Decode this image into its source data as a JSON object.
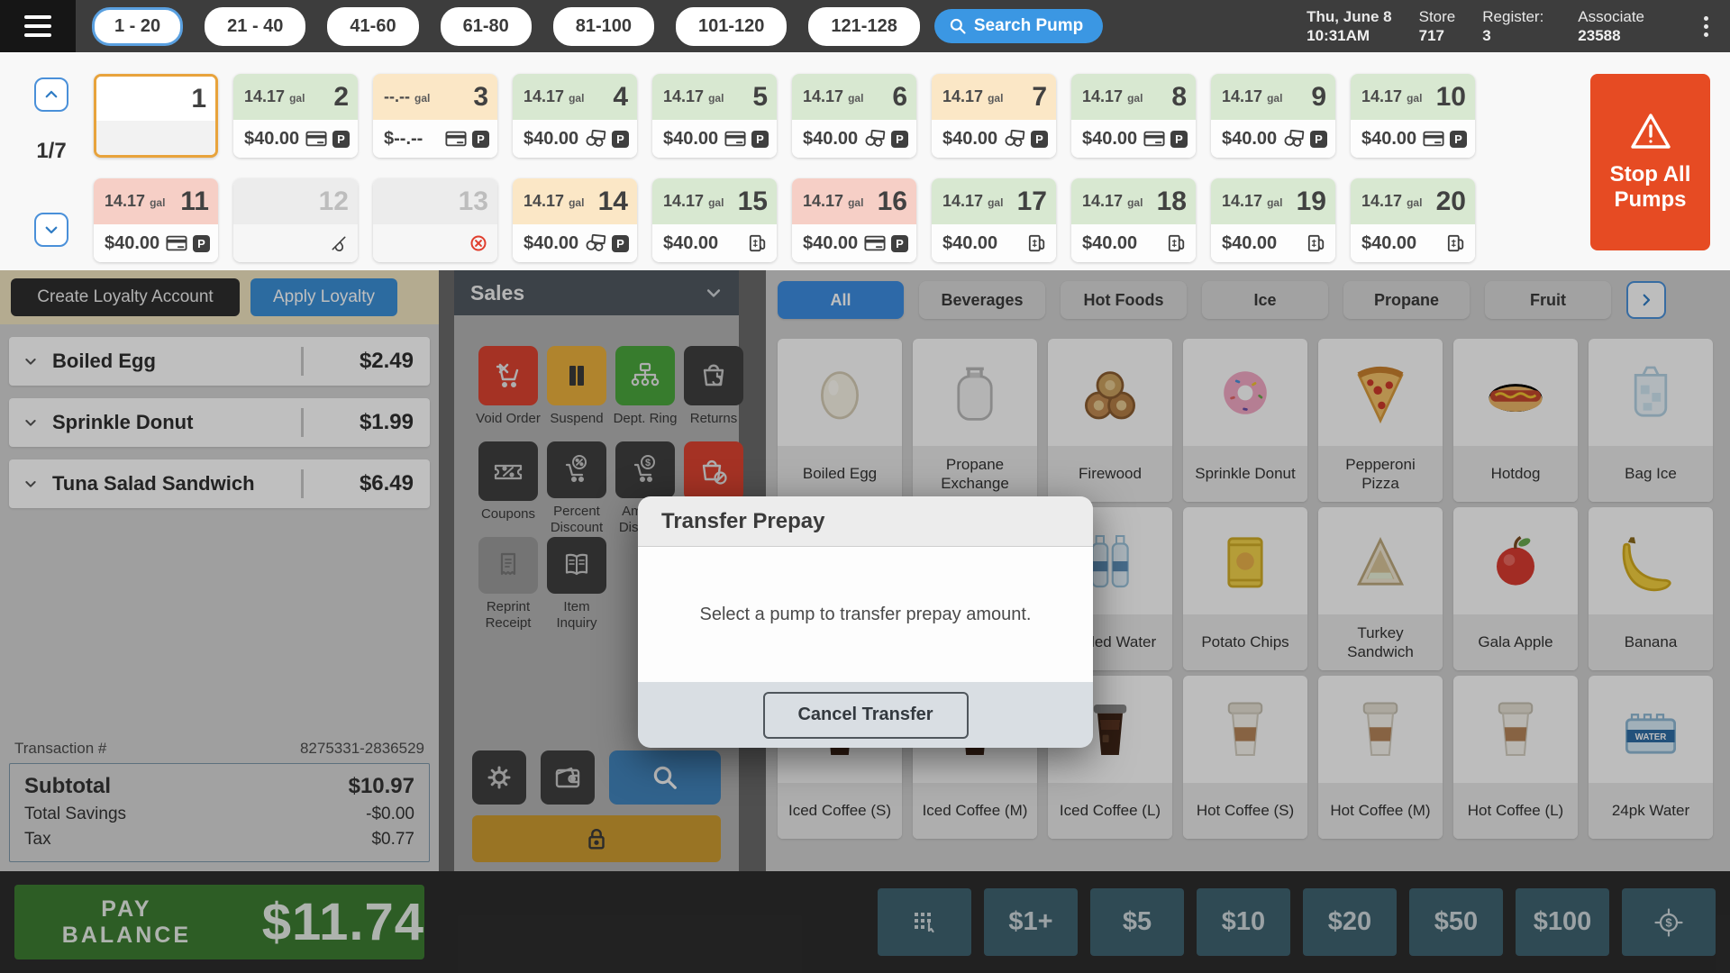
{
  "colors": {
    "accent_blue": "#3b97e3",
    "stop_red": "#e64b23",
    "pay_green": "#3c7d32",
    "selected_pump_border": "#e8a33c",
    "pump_green": "#d8e8d1",
    "pump_tan": "#fbe7c6",
    "pump_pink": "#f6cfc6",
    "suspend_gold": "#ebb03d",
    "void_red": "#dc4331"
  },
  "header": {
    "tabs": [
      {
        "label": "1 - 20",
        "selected": true
      },
      {
        "label": "21 - 40",
        "selected": false
      },
      {
        "label": "41-60",
        "selected": false
      },
      {
        "label": "61-80",
        "selected": false
      },
      {
        "label": "81-100",
        "selected": false
      },
      {
        "label": "101-120",
        "selected": false
      },
      {
        "label": "121-128",
        "selected": false
      }
    ],
    "search_pump_label": "Search Pump",
    "date": "Thu, June 8",
    "time": "10:31AM",
    "store_label": "Store",
    "store_value": "717",
    "register_label": "Register:",
    "register_value": "3",
    "associate_label": "Associate",
    "associate_value": "23588"
  },
  "pumps": {
    "page": "1/7",
    "stop_all_label": "Stop All Pumps",
    "tiles": [
      {
        "number": "1",
        "state": "selected",
        "gal": "",
        "unit": "",
        "price": "",
        "icons": []
      },
      {
        "number": "2",
        "state": "green",
        "gal": "14.17",
        "unit": "gal",
        "price": "$40.00",
        "icons": [
          "card-icon",
          "prepay-badge"
        ]
      },
      {
        "number": "3",
        "state": "tan",
        "gal": "--.--",
        "unit": "gal",
        "price": "$--.--",
        "icons": [
          "card-icon",
          "prepay-badge"
        ]
      },
      {
        "number": "4",
        "state": "green",
        "gal": "14.17",
        "unit": "gal",
        "price": "$40.00",
        "icons": [
          "coins-icon",
          "prepay-badge"
        ]
      },
      {
        "number": "5",
        "state": "green",
        "gal": "14.17",
        "unit": "gal",
        "price": "$40.00",
        "icons": [
          "card-icon",
          "prepay-badge"
        ]
      },
      {
        "number": "6",
        "state": "green",
        "gal": "14.17",
        "unit": "gal",
        "price": "$40.00",
        "icons": [
          "coins-icon",
          "prepay-badge"
        ]
      },
      {
        "number": "7",
        "state": "tan",
        "gal": "14.17",
        "unit": "gal",
        "price": "$40.00",
        "icons": [
          "coins-icon",
          "prepay-badge"
        ]
      },
      {
        "number": "8",
        "state": "green",
        "gal": "14.17",
        "unit": "gal",
        "price": "$40.00",
        "icons": [
          "card-icon",
          "prepay-badge"
        ]
      },
      {
        "number": "9",
        "state": "green",
        "gal": "14.17",
        "unit": "gal",
        "price": "$40.00",
        "icons": [
          "coins-icon",
          "prepay-badge"
        ]
      },
      {
        "number": "10",
        "state": "green",
        "gal": "14.17",
        "unit": "gal",
        "price": "$40.00",
        "icons": [
          "card-icon",
          "prepay-badge"
        ]
      },
      {
        "number": "11",
        "state": "pink",
        "gal": "14.17",
        "unit": "gal",
        "price": "$40.00",
        "icons": [
          "card-icon",
          "prepay-badge"
        ]
      },
      {
        "number": "12",
        "state": "offline",
        "gal": "",
        "unit": "",
        "price": "",
        "icons": [
          "nofuel-icon"
        ]
      },
      {
        "number": "13",
        "state": "offline",
        "gal": "",
        "unit": "",
        "price": "",
        "icons": [
          "error-icon"
        ]
      },
      {
        "number": "14",
        "state": "tan",
        "gal": "14.17",
        "unit": "gal",
        "price": "$40.00",
        "icons": [
          "coins-icon",
          "prepay-badge"
        ]
      },
      {
        "number": "15",
        "state": "green",
        "gal": "14.17",
        "unit": "gal",
        "price": "$40.00",
        "icons": [
          "fuel-icon"
        ]
      },
      {
        "number": "16",
        "state": "pink",
        "gal": "14.17",
        "unit": "gal",
        "price": "$40.00",
        "icons": [
          "card-icon",
          "prepay-badge"
        ]
      },
      {
        "number": "17",
        "state": "green",
        "gal": "14.17",
        "unit": "gal",
        "price": "$40.00",
        "icons": [
          "fuel-icon"
        ]
      },
      {
        "number": "18",
        "state": "green",
        "gal": "14.17",
        "unit": "gal",
        "price": "$40.00",
        "icons": [
          "fuel-icon"
        ]
      },
      {
        "number": "19",
        "state": "green",
        "gal": "14.17",
        "unit": "gal",
        "price": "$40.00",
        "icons": [
          "fuel-icon"
        ]
      },
      {
        "number": "20",
        "state": "green",
        "gal": "14.17",
        "unit": "gal",
        "price": "$40.00",
        "icons": [
          "fuel-icon"
        ]
      }
    ]
  },
  "left_panel": {
    "create_loyalty_label": "Create Loyalty Account",
    "apply_loyalty_label": "Apply Loyalty",
    "items": [
      {
        "name": "Boiled Egg",
        "price": "$2.49"
      },
      {
        "name": "Sprinkle Donut",
        "price": "$1.99"
      },
      {
        "name": "Tuna Salad Sandwich",
        "price": "$6.49"
      }
    ],
    "transaction_label": "Transaction #",
    "transaction_number": "8275331-2836529",
    "totals": [
      {
        "label": "Subtotal",
        "value": "$10.97",
        "big": true
      },
      {
        "label": "Total Savings",
        "value": "-$0.00",
        "big": false
      },
      {
        "label": "Tax",
        "value": "$0.77",
        "big": false
      }
    ]
  },
  "sales_panel": {
    "title": "Sales",
    "buttons": [
      {
        "label": "Void Order",
        "icon": "cart-x-icon",
        "style": "red"
      },
      {
        "label": "Suspend",
        "icon": "pause-icon",
        "style": "gold"
      },
      {
        "label": "Dept. Ring",
        "icon": "dept-ring-icon",
        "style": "green"
      },
      {
        "label": "Returns",
        "icon": "basket-return-icon",
        "style": "dark"
      },
      {
        "label": "Coupons",
        "icon": "ticket-icon",
        "style": "dark"
      },
      {
        "label": "Percent Discount",
        "icon": "percent-cart-icon",
        "style": "dark"
      },
      {
        "label": "Amount Discount",
        "icon": "dollar-cart-icon",
        "style": "dark"
      },
      {
        "label": "",
        "icon": "basket-slash-icon",
        "style": "red"
      },
      {
        "label": "Reprint Receipt",
        "icon": "receipt-icon",
        "style": "disabled"
      },
      {
        "label": "Item Inquiry",
        "icon": "book-icon",
        "style": "dark"
      }
    ]
  },
  "products": {
    "tabs": [
      {
        "label": "All",
        "selected": true
      },
      {
        "label": "Beverages",
        "selected": false
      },
      {
        "label": "Hot Foods",
        "selected": false
      },
      {
        "label": "Ice",
        "selected": false
      },
      {
        "label": "Propane",
        "selected": false
      },
      {
        "label": "Fruit",
        "selected": false
      }
    ],
    "items": [
      {
        "name": "Boiled Egg",
        "icon": "egg"
      },
      {
        "name": "Propane Exchange",
        "icon": "propane"
      },
      {
        "name": "Firewood",
        "icon": "firewood"
      },
      {
        "name": "Sprinkle Donut",
        "icon": "donut"
      },
      {
        "name": "Pepperoni Pizza",
        "icon": "pizza"
      },
      {
        "name": "Hotdog",
        "icon": "hotdog"
      },
      {
        "name": "Bag Ice",
        "icon": "ice-bag"
      },
      {
        "name": "",
        "icon": "blank"
      },
      {
        "name": "",
        "icon": "blank"
      },
      {
        "name": "Bottled Water",
        "icon": "water-bottles"
      },
      {
        "name": "Potato Chips",
        "icon": "chips"
      },
      {
        "name": "Turkey Sandwich",
        "icon": "sandwich"
      },
      {
        "name": "Gala Apple",
        "icon": "apple"
      },
      {
        "name": "Banana",
        "icon": "banana"
      },
      {
        "name": "Iced Coffee (S)",
        "icon": "iced-coffee"
      },
      {
        "name": "Iced Coffee (M)",
        "icon": "iced-coffee"
      },
      {
        "name": "Iced Coffee (L)",
        "icon": "iced-coffee"
      },
      {
        "name": "Hot Coffee (S)",
        "icon": "hot-coffee"
      },
      {
        "name": "Hot Coffee (M)",
        "icon": "hot-coffee"
      },
      {
        "name": "Hot Coffee (L)",
        "icon": "hot-coffee"
      },
      {
        "name": "24pk Water",
        "icon": "water-case"
      }
    ]
  },
  "modal": {
    "title": "Transfer Prepay",
    "message": "Select a pump to transfer prepay amount.",
    "cancel_label": "Cancel Transfer"
  },
  "footer": {
    "pay_label": "PAY  BALANCE",
    "amount": "$11.74",
    "cash_buttons": [
      "$1+",
      "$5",
      "$10",
      "$20",
      "$50",
      "$100"
    ]
  }
}
